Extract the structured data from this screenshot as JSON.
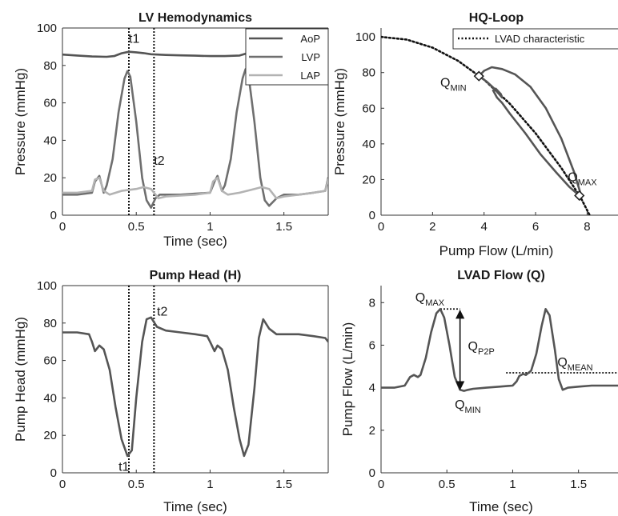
{
  "figure": {
    "colors": {
      "AoP": "#545454",
      "LVP": "#6f6f6f",
      "LAP": "#b3b3b3",
      "curve": "#555555",
      "axis": "#333333",
      "dotted": "#111111"
    }
  },
  "chart_data": [
    {
      "type": "line",
      "title": "LV Hemodynamics",
      "xlabel": "Time (sec)",
      "ylabel": "Pressure (mmHg)",
      "xlim": [
        0,
        1.8
      ],
      "ylim": [
        0,
        100
      ],
      "xticks": [
        0,
        0.5,
        1,
        1.5
      ],
      "xtick_labels": [
        "0",
        "0.5",
        "1",
        "1.5"
      ],
      "yticks": [
        0,
        20,
        40,
        60,
        80,
        100
      ],
      "ytick_labels": [
        "0",
        "20",
        "40",
        "60",
        "80",
        "100"
      ],
      "legend": "top-right",
      "series": [
        {
          "name": "AoP",
          "x": [
            0,
            0.1,
            0.2,
            0.3,
            0.35,
            0.4,
            0.45,
            0.5,
            0.55,
            0.6,
            0.7,
            0.8,
            0.9,
            1.0,
            1.1,
            1.2,
            1.25,
            1.3,
            1.35,
            1.4
          ],
          "y": [
            85.8,
            85.3,
            84.8,
            84.6,
            85.0,
            86.5,
            87.3,
            87.0,
            86.6,
            86.0,
            85.6,
            85.4,
            85.2,
            85.0,
            85.0,
            85.3,
            86.5,
            87.8,
            88.5,
            88.5
          ]
        },
        {
          "name": "LVP",
          "x": [
            0,
            0.1,
            0.2,
            0.22,
            0.25,
            0.28,
            0.3,
            0.34,
            0.38,
            0.42,
            0.44,
            0.46,
            0.5,
            0.54,
            0.57,
            0.6,
            0.63,
            0.66,
            0.7,
            0.8,
            0.9,
            1.0,
            1.03,
            1.05,
            1.08,
            1.1,
            1.14,
            1.18,
            1.22,
            1.24,
            1.26,
            1.3,
            1.34,
            1.37,
            1.4,
            1.45,
            1.5,
            1.6,
            1.7,
            1.78,
            1.8
          ],
          "y": [
            11,
            11,
            12,
            18,
            21,
            12,
            16,
            30,
            55,
            73,
            77,
            74,
            50,
            20,
            8,
            4,
            9,
            11,
            11,
            11,
            11.5,
            12,
            18,
            21,
            13,
            16,
            30,
            55,
            73,
            78,
            75,
            50,
            20,
            8,
            5,
            9,
            11,
            11,
            12,
            13,
            20
          ]
        },
        {
          "name": "LAP",
          "x": [
            0,
            0.1,
            0.2,
            0.22,
            0.25,
            0.28,
            0.32,
            0.4,
            0.5,
            0.55,
            0.6,
            0.65,
            0.7,
            0.8,
            0.9,
            1.0,
            1.02,
            1.05,
            1.08,
            1.12,
            1.2,
            1.3,
            1.35,
            1.4,
            1.45,
            1.5,
            1.6,
            1.7,
            1.78,
            1.8
          ],
          "y": [
            12,
            12,
            13,
            19,
            20,
            13,
            11,
            13,
            14,
            15,
            14,
            9,
            10,
            10.5,
            11,
            12,
            18,
            20,
            13,
            11,
            12,
            14,
            15,
            14,
            9,
            10,
            11,
            12,
            13,
            19
          ]
        }
      ],
      "annotations": [
        {
          "text": "t1",
          "x": 0.45,
          "y": 92
        },
        {
          "text": "t2",
          "x": 0.62,
          "y": 27
        }
      ],
      "vlines": [
        0.45,
        0.62
      ]
    },
    {
      "type": "line",
      "title": "HQ-Loop",
      "xlabel": "Pump Flow (L/min)",
      "ylabel": "Pressure (mmHg)",
      "xlim": [
        0,
        9.2
      ],
      "ylim": [
        0,
        105
      ],
      "xticks": [
        0,
        2,
        4,
        6,
        8
      ],
      "xtick_labels": [
        "0",
        "2",
        "4",
        "6",
        "8"
      ],
      "yticks": [
        0,
        20,
        40,
        60,
        80,
        100
      ],
      "ytick_labels": [
        "0",
        "20",
        "40",
        "60",
        "80",
        "100"
      ],
      "legend": "top-right",
      "series": [
        {
          "name": "LVAD characteristic",
          "style": "dotted",
          "x": [
            0,
            1,
            2,
            3,
            4,
            5,
            6,
            7,
            7.5,
            7.8,
            8.1
          ],
          "y": [
            100,
            98.5,
            94,
            86.5,
            76,
            62.5,
            46,
            26.5,
            15.5,
            8.5,
            0
          ]
        },
        {
          "name": "",
          "style": "loop",
          "x": [
            3.8,
            4.0,
            4.3,
            4.7,
            5.2,
            5.8,
            6.4,
            7.0,
            7.5,
            7.75,
            7.7,
            7.3,
            6.8,
            6.2,
            5.6,
            5.0,
            4.7,
            4.5,
            4.35,
            4.45,
            4.65,
            4.7,
            4.4,
            4.1,
            3.8
          ],
          "y": [
            78,
            81,
            83,
            82,
            79,
            72,
            60,
            43,
            24,
            12,
            11,
            16,
            24,
            34,
            46,
            57,
            63,
            66,
            70,
            71,
            68,
            66,
            71,
            75,
            78
          ]
        }
      ],
      "markers": [
        {
          "x": 3.8,
          "y": 78
        },
        {
          "x": 7.7,
          "y": 11
        }
      ],
      "annotations": [
        {
          "text": "Q",
          "sub": "MIN",
          "x": 2.3,
          "y": 72
        },
        {
          "text": "Q",
          "sub": "MAX",
          "x": 7.25,
          "y": 19
        }
      ]
    },
    {
      "type": "line",
      "title": "Pump Head (H)",
      "xlabel": "Time (sec)",
      "ylabel": "Pump Head (mmHg)",
      "xlim": [
        0,
        1.8
      ],
      "ylim": [
        0,
        100
      ],
      "xticks": [
        0,
        0.5,
        1,
        1.5
      ],
      "xtick_labels": [
        "0",
        "0.5",
        "1",
        "1.5"
      ],
      "yticks": [
        0,
        20,
        40,
        60,
        80,
        100
      ],
      "ytick_labels": [
        "0",
        "20",
        "40",
        "60",
        "80",
        "100"
      ],
      "series": [
        {
          "name": "",
          "x": [
            0,
            0.1,
            0.18,
            0.2,
            0.22,
            0.25,
            0.28,
            0.32,
            0.36,
            0.4,
            0.44,
            0.47,
            0.5,
            0.54,
            0.57,
            0.6,
            0.64,
            0.7,
            0.8,
            0.9,
            0.98,
            1.0,
            1.03,
            1.05,
            1.08,
            1.12,
            1.16,
            1.2,
            1.23,
            1.26,
            1.3,
            1.33,
            1.36,
            1.4,
            1.45,
            1.5,
            1.6,
            1.7,
            1.78,
            1.8
          ],
          "y": [
            75,
            75,
            74,
            70,
            65,
            68,
            66,
            55,
            35,
            18,
            9,
            12,
            40,
            70,
            82,
            83,
            78,
            76,
            75,
            74,
            73,
            70,
            65,
            68,
            66,
            55,
            35,
            18,
            9,
            15,
            45,
            72,
            82,
            77,
            74,
            74,
            74,
            73,
            72,
            70
          ]
        }
      ],
      "annotations": [
        {
          "text": "t1",
          "x": 0.38,
          "y": 1
        },
        {
          "text": "t2",
          "x": 0.64,
          "y": 84
        }
      ],
      "vlines": [
        0.45,
        0.62
      ]
    },
    {
      "type": "line",
      "title": "LVAD Flow (Q)",
      "xlabel": "Time (sec)",
      "ylabel": "Pump Flow (L/min)",
      "xlim": [
        0,
        1.8
      ],
      "ylim": [
        0,
        8.8
      ],
      "xticks": [
        0,
        0.5,
        1,
        1.5
      ],
      "xtick_labels": [
        "0",
        "0.5",
        "1",
        "1.5"
      ],
      "yticks": [
        0,
        2,
        4,
        6,
        8
      ],
      "ytick_labels": [
        "0",
        "2",
        "4",
        "6",
        "8"
      ],
      "series": [
        {
          "name": "",
          "x": [
            0,
            0.1,
            0.18,
            0.2,
            0.22,
            0.25,
            0.28,
            0.3,
            0.34,
            0.38,
            0.42,
            0.45,
            0.48,
            0.52,
            0.56,
            0.6,
            0.63,
            0.66,
            0.7,
            0.8,
            0.9,
            1.0,
            1.03,
            1.05,
            1.08,
            1.1,
            1.14,
            1.18,
            1.22,
            1.25,
            1.28,
            1.32,
            1.35,
            1.38,
            1.42,
            1.5,
            1.6,
            1.7,
            1.8
          ],
          "y": [
            4.0,
            4.0,
            4.1,
            4.3,
            4.5,
            4.6,
            4.5,
            4.6,
            5.4,
            6.6,
            7.5,
            7.7,
            7.3,
            6.0,
            4.5,
            3.9,
            3.85,
            3.9,
            3.95,
            4.0,
            4.05,
            4.1,
            4.3,
            4.55,
            4.65,
            4.6,
            4.8,
            5.6,
            6.9,
            7.7,
            7.4,
            5.8,
            4.4,
            3.9,
            4.0,
            4.05,
            4.1,
            4.1,
            4.1
          ]
        }
      ],
      "hlines": [
        {
          "y": 4.7,
          "x0": 0.95,
          "x1": 1.8
        },
        {
          "y": 7.7,
          "x0": 0.45,
          "x1": 0.6
        }
      ],
      "arrow": {
        "x": 0.6,
        "y0": 3.85,
        "y1": 7.7
      },
      "annotations": [
        {
          "text": "Q",
          "sub": "MAX",
          "x": 0.26,
          "y": 8.05
        },
        {
          "text": "Q",
          "sub": "P2P",
          "x": 0.66,
          "y": 5.75
        },
        {
          "text": "Q",
          "sub": "MEAN",
          "x": 1.34,
          "y": 5.0
        },
        {
          "text": "Q",
          "sub": "MIN",
          "x": 0.56,
          "y": 3.0
        }
      ]
    }
  ]
}
